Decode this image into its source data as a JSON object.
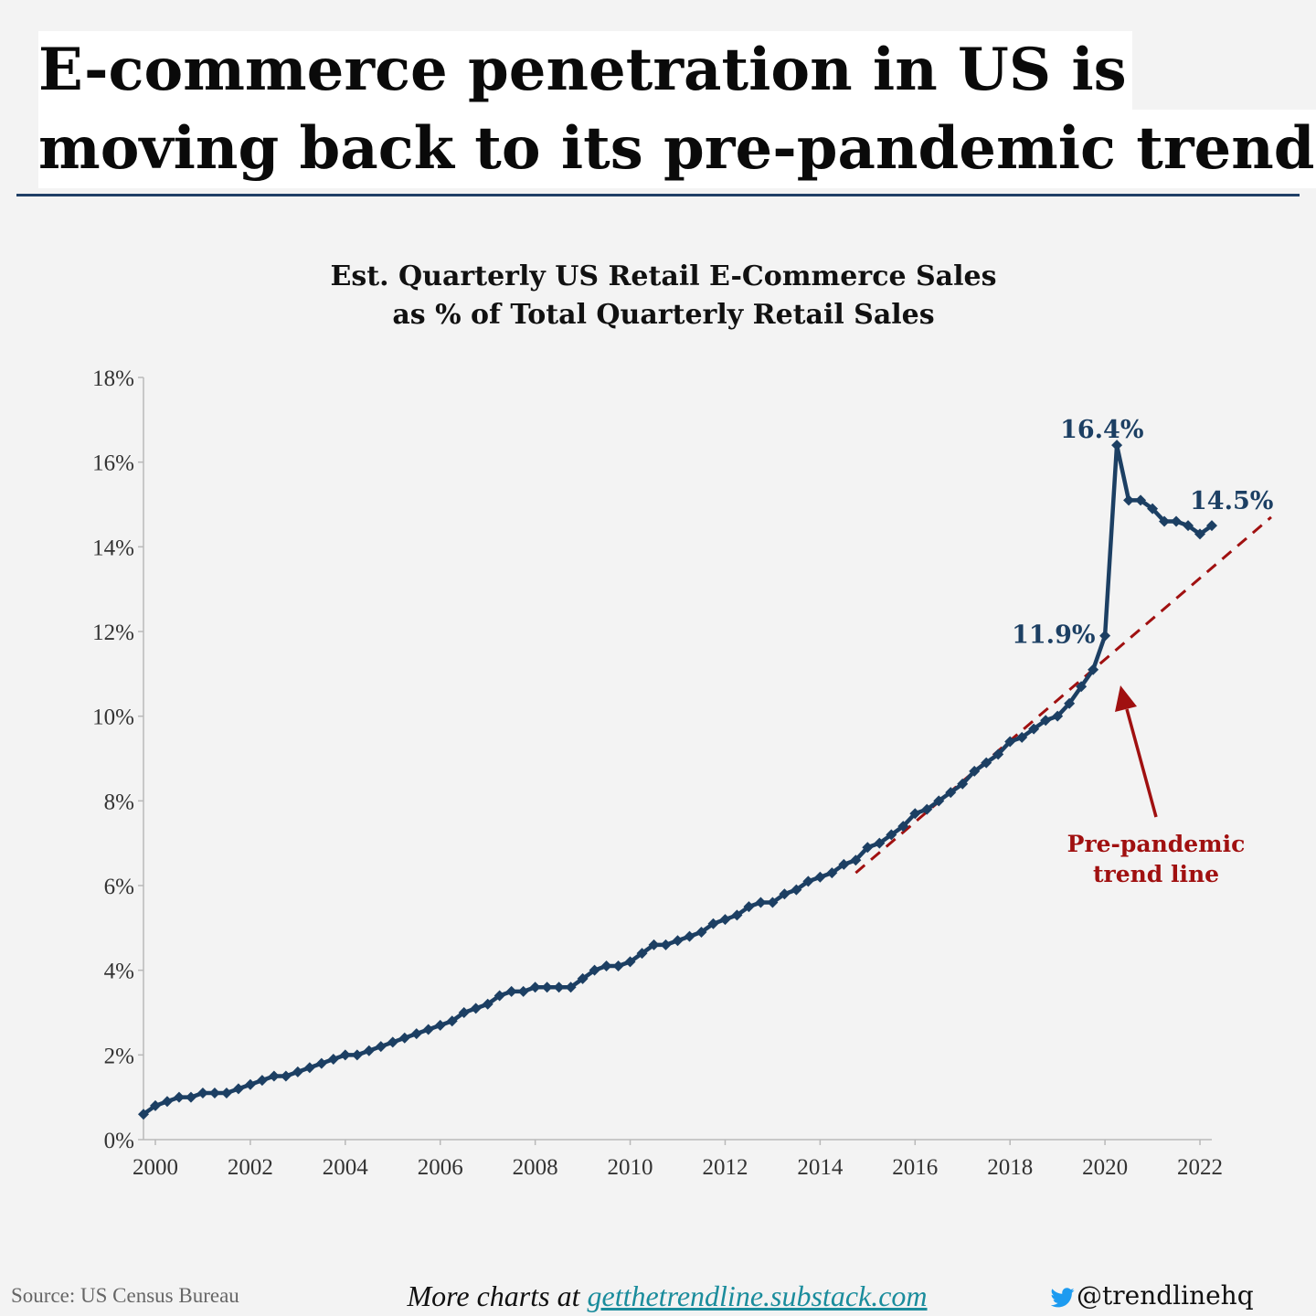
{
  "headline": {
    "line1": "E-commerce penetration in US is",
    "line2": "moving back to its pre-pandemic trend"
  },
  "chart_title": {
    "line1": "Est. Quarterly US Retail E-Commerce Sales",
    "line2": "as % of Total Quarterly Retail Sales"
  },
  "chart_data": {
    "type": "line",
    "title": "Est. Quarterly US Retail E-Commerce Sales as % of Total Quarterly Retail Sales",
    "xlabel": "",
    "ylabel": "",
    "ylim": [
      0,
      18
    ],
    "xlim": [
      1999.75,
      2022.25
    ],
    "y_ticks": [
      0,
      2,
      4,
      6,
      8,
      10,
      12,
      14,
      16,
      18
    ],
    "y_tick_labels": [
      "0%",
      "2%",
      "4%",
      "6%",
      "8%",
      "10%",
      "12%",
      "14%",
      "16%",
      "18%"
    ],
    "x_ticks": [
      2000,
      2002,
      2004,
      2006,
      2008,
      2010,
      2012,
      2014,
      2016,
      2018,
      2020,
      2022
    ],
    "x_tick_labels": [
      "2000",
      "2002",
      "2004",
      "2006",
      "2008",
      "2010",
      "2012",
      "2014",
      "2016",
      "2018",
      "2020",
      "2022"
    ],
    "grid": false,
    "series": [
      {
        "color": "#1c3f63",
        "marker": "diamond",
        "start": "1999 Q4",
        "frequency": "quarterly",
        "values": [
          0.6,
          0.8,
          0.9,
          1.0,
          1.0,
          1.1,
          1.1,
          1.1,
          1.2,
          1.3,
          1.4,
          1.5,
          1.5,
          1.6,
          1.7,
          1.8,
          1.9,
          2.0,
          2.0,
          2.1,
          2.2,
          2.3,
          2.4,
          2.5,
          2.6,
          2.7,
          2.8,
          3.0,
          3.1,
          3.2,
          3.4,
          3.5,
          3.5,
          3.6,
          3.6,
          3.6,
          3.6,
          3.8,
          4.0,
          4.1,
          4.1,
          4.2,
          4.4,
          4.6,
          4.6,
          4.7,
          4.8,
          4.9,
          5.1,
          5.2,
          5.3,
          5.5,
          5.6,
          5.6,
          5.8,
          5.9,
          6.1,
          6.2,
          6.3,
          6.5,
          6.6,
          6.9,
          7.0,
          7.2,
          7.4,
          7.7,
          7.8,
          8.0,
          8.2,
          8.4,
          8.7,
          8.9,
          9.1,
          9.4,
          9.5,
          9.7,
          9.9,
          10.0,
          10.3,
          10.7,
          11.1,
          11.9,
          16.4,
          15.1,
          15.1,
          14.9,
          14.6,
          14.6,
          14.5,
          14.3,
          14.5
        ]
      },
      {
        "name": "Pre-pandemic trend line",
        "color": "#a01010",
        "style": "dashed",
        "x": [
          2014.75,
          2023.5
        ],
        "y": [
          6.3,
          14.7
        ]
      }
    ],
    "annotations": [
      {
        "text": "16.4%",
        "x": 2020.25,
        "y": 16.4,
        "color": "#1c3f63"
      },
      {
        "text": "11.9%",
        "x": 2020.0,
        "y": 11.9,
        "color": "#1c3f63"
      },
      {
        "text": "14.5%",
        "x": 2022.25,
        "y": 14.5,
        "color": "#1c3f63"
      },
      {
        "text_line1": "Pre-pandemic",
        "text_line2": "trend line",
        "color": "#a01010",
        "arrow": true
      }
    ]
  },
  "footer": {
    "source": "Source: US Census Bureau",
    "promo_prefix": "More charts at ",
    "promo_link": "getthetrendline.substack.com",
    "handle": "@trendlinehq",
    "handle_icon": "twitter-bird-icon"
  },
  "colors": {
    "background": "#f3f3f3",
    "series": "#1c3f63",
    "trend": "#a01010",
    "rule": "#1f3f66",
    "link": "#1a8c9c"
  }
}
